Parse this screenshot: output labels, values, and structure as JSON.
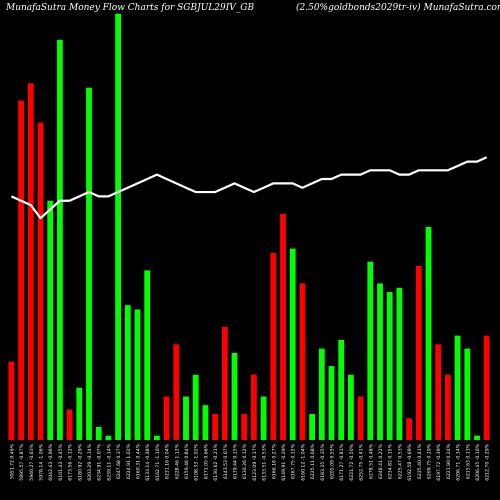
{
  "header": {
    "left": "MunafaSutra  Money Flow  Charts for SGBJUL29IV_GB",
    "right": "(2.50%goldbonds2029tr-iv) MunafaSutra.com"
  },
  "colors": {
    "background": "#000000",
    "up": "#00ff00",
    "down": "#ff0000",
    "line": "#ffffff"
  },
  "chart_data": {
    "type": "bar",
    "ylim": [
      0,
      100
    ],
    "categories": [
      "5951.72 0.46%",
      "5895.57 -0.87%",
      "5940.27 -0.63%",
      "5978.14 -1.06%",
      "6042.43 -0.96%",
      "6101.43 -0.45%",
      "6173.56 -0.12%",
      "6180.92 -0.29%",
      "6203.29 -0.34%",
      "6234.91 -0.07%",
      "6239.11 -0.14%",
      "6247.68 0.37%",
      "6224.91 1.02%",
      "6160.31 0.44%",
      "6133.14 -0.48%",
      "6162.71 -1.10%",
      "6231.16 0.04%",
      "6228.46 1.12%",
      "6159.48 0.84%",
      "6108.33 -1.02%",
      "6171.05 0.66%",
      "6130.62 -0.21%",
      "6143.53 0.07%",
      "6139.44 0.15%",
      "6130.26 0.12%",
      "6123.09 -0.17%",
      "6133.51 -0.53%",
      "6166.18 0.27%",
      "6149.91 -0.29%",
      "6167.75 0.12%",
      "6160.12 -1.04%",
      "6225.11 0.68%",
      "6183.35 -0.35%",
      "6205.09 0.55%",
      "6171.27 -0.81%",
      "6221.72 -0.50%",
      "6252.75 -0.41%",
      "6278.51 0.48%",
      "6248.41 0.22%",
      "6234.82 0.15%",
      "6225.47 0.53%",
      "6192.58 -0.69%",
      "6235.40 0.41%",
      "6209.75 0.19%",
      "6197.72 -0.39%",
      "6221.90 0.24%",
      "6206.71 -0.14%",
      "6215.63 0.13%",
      "6206.45 -0.10%",
      "6212.70 -0.29%"
    ],
    "series": [
      {
        "values": [
          18,
          78,
          82,
          73,
          55,
          92,
          7,
          12,
          81,
          3,
          1,
          98,
          31,
          30,
          39,
          1,
          10,
          22,
          10,
          15,
          8,
          6,
          26,
          20,
          6,
          15,
          10,
          43,
          52,
          44,
          36,
          6,
          21,
          17,
          23,
          15,
          10,
          41,
          36,
          34,
          35,
          5,
          40,
          49,
          22,
          15,
          24,
          21,
          1,
          24
        ],
        "up": [
          false,
          false,
          false,
          false,
          true,
          true,
          false,
          true,
          true,
          true,
          true,
          true,
          true,
          true,
          true,
          true,
          false,
          false,
          true,
          true,
          true,
          false,
          false,
          true,
          false,
          false,
          true,
          false,
          false,
          true,
          false,
          true,
          true,
          true,
          true,
          true,
          false,
          true,
          true,
          true,
          true,
          false,
          false,
          true,
          false,
          false,
          true,
          true,
          true,
          false
        ]
      },
      {
        "values": [
          56,
          55,
          54,
          51,
          53,
          55,
          55,
          56,
          57,
          56,
          56,
          57,
          58,
          59,
          60,
          61,
          60,
          59,
          58,
          57,
          57,
          57,
          58,
          59,
          58,
          57,
          58,
          59,
          59,
          59,
          58,
          59,
          60,
          60,
          61,
          61,
          61,
          62,
          62,
          62,
          61,
          61,
          62,
          62,
          62,
          62,
          63,
          64,
          64,
          65
        ]
      }
    ]
  }
}
